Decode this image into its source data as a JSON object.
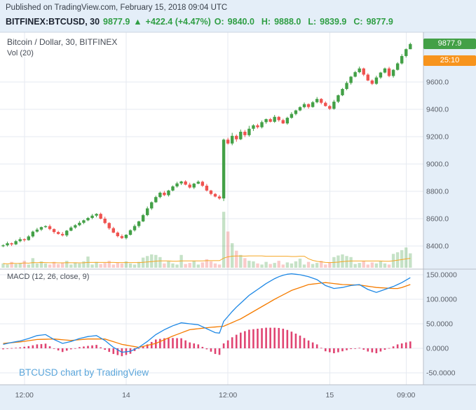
{
  "header": {
    "published": "Published on TradingView.com, February 15, 2018 09:04 UTC",
    "symbol": "BITFINEX:BTCUSD, 30",
    "last_price": "9877.9",
    "arrow": "▲",
    "change": "+422.4 (+4.47%)",
    "ohlc": [
      {
        "label": "O:",
        "value": "9840.0"
      },
      {
        "label": "H:",
        "value": "9888.0"
      },
      {
        "label": "L:",
        "value": "9839.9"
      },
      {
        "label": "C:",
        "value": "9877.9"
      }
    ]
  },
  "legends": {
    "main": "Bitcoin / Dollar, 30, BITFINEX",
    "volume": "Vol (20)",
    "macd": "MACD (12, 26, close, 9)"
  },
  "watermark": "BTCUSD chart by TradingView",
  "axis": {
    "price_badge": "9877.9",
    "countdown_badge": "25:10"
  },
  "colors": {
    "background": "#e4eef8",
    "plot": "#ffffff",
    "grid": "#e6eaf0",
    "border": "#b7bdc7",
    "header_border": "#ccd6e2",
    "up": "#43a047",
    "down": "#ef5350",
    "text_green": "#2f9e44",
    "macd_blue": "#1e88e5",
    "macd_orange": "#f57c00",
    "histogram": "#e04472",
    "vol_ma": "#f5a623",
    "watermark": "#5ba6db",
    "countdown_bg": "#f7941d",
    "axis_text": "#5a5f68",
    "day_text": "#333a45"
  },
  "chart_data": {
    "type": "candlestick",
    "title": "Bitcoin / Dollar, 30, BITFINEX",
    "symbol": "BITFINEX:BTCUSD",
    "interval_minutes": 30,
    "panels": [
      "price+volume",
      "macd"
    ],
    "last_bar": {
      "open": 9840.0,
      "high": 9888.0,
      "low": 9839.9,
      "close": 9877.9,
      "change": "+422.4",
      "change_pct": "+4.47%"
    },
    "price_ticks": [
      {
        "v": 9600,
        "label": "9600.0"
      },
      {
        "v": 9400,
        "label": "9400.0"
      },
      {
        "v": 9200,
        "label": "9200.0"
      },
      {
        "v": 9000,
        "label": "9000.0"
      },
      {
        "v": 8800,
        "label": "8800.0"
      },
      {
        "v": 8600,
        "label": "8600.0"
      },
      {
        "v": 8400,
        "label": "8400.0"
      }
    ],
    "macd_ticks": [
      {
        "v": 150,
        "label": "150.0000"
      },
      {
        "v": 100,
        "label": "100.0000"
      },
      {
        "v": 50,
        "label": "50.0000"
      },
      {
        "v": 0,
        "label": "0.0000"
      },
      {
        "v": -50,
        "label": "-50.0000"
      }
    ],
    "time_ticks": [
      {
        "i": 5,
        "label": "12:00",
        "day": false
      },
      {
        "i": 29,
        "label": "14",
        "day": true
      },
      {
        "i": 53,
        "label": "12:00",
        "day": false
      },
      {
        "i": 77,
        "label": "15",
        "day": true
      },
      {
        "i": 95,
        "label": "09:00",
        "day": false
      }
    ],
    "candles": [
      [
        8398,
        8412,
        8392,
        8405,
        8
      ],
      [
        8405,
        8432,
        8396,
        8420,
        6
      ],
      [
        8420,
        8425,
        8400,
        8412,
        11
      ],
      [
        8412,
        8444,
        8407,
        8435,
        7
      ],
      [
        8435,
        8464,
        8427,
        8450,
        9
      ],
      [
        8450,
        8456,
        8432,
        8443,
        13
      ],
      [
        8443,
        8480,
        8439,
        8470,
        6
      ],
      [
        8470,
        8513,
        8461,
        8505,
        18
      ],
      [
        8505,
        8533,
        8498,
        8520,
        8
      ],
      [
        8520,
        8543,
        8510,
        8538,
        12
      ],
      [
        8538,
        8552,
        8532,
        8545,
        8
      ],
      [
        8545,
        8557,
        8515,
        8524,
        6
      ],
      [
        8524,
        8529,
        8490,
        8502,
        11
      ],
      [
        8502,
        8511,
        8483,
        8488,
        7
      ],
      [
        8488,
        8502,
        8470,
        8478,
        9
      ],
      [
        8478,
        8518,
        8467,
        8512,
        13
      ],
      [
        8512,
        8545,
        8508,
        8535,
        6
      ],
      [
        8535,
        8560,
        8526,
        8552,
        10
      ],
      [
        8552,
        8583,
        8545,
        8570,
        8
      ],
      [
        8570,
        8593,
        8560,
        8588,
        12
      ],
      [
        8588,
        8612,
        8582,
        8605,
        21
      ],
      [
        8605,
        8634,
        8596,
        8622,
        6
      ],
      [
        8622,
        8640,
        8610,
        8635,
        11
      ],
      [
        8635,
        8644,
        8595,
        8600,
        7
      ],
      [
        8600,
        8614,
        8560,
        8568,
        9
      ],
      [
        8568,
        8574,
        8519,
        8530,
        13
      ],
      [
        8530,
        8540,
        8494,
        8498,
        6
      ],
      [
        8498,
        8506,
        8463,
        8472,
        10
      ],
      [
        8472,
        8485,
        8451,
        8458,
        8
      ],
      [
        8458,
        8487,
        8448,
        8482,
        12
      ],
      [
        8482,
        8522,
        8476,
        8515,
        8
      ],
      [
        8515,
        8558,
        8506,
        8546,
        6
      ],
      [
        8546,
        8585,
        8534,
        8580,
        11
      ],
      [
        8580,
        8635,
        8575,
        8626,
        19
      ],
      [
        8626,
        8689,
        8618,
        8675,
        22
      ],
      [
        8675,
        8726,
        8664,
        8720,
        25
      ],
      [
        8720,
        8768,
        8716,
        8758,
        24
      ],
      [
        8758,
        8798,
        8749,
        8790,
        20
      ],
      [
        8790,
        8803,
        8765,
        8772,
        8
      ],
      [
        8772,
        8811,
        8762,
        8806,
        12
      ],
      [
        8806,
        8843,
        8800,
        8836,
        8
      ],
      [
        8836,
        8870,
        8827,
        8858,
        6
      ],
      [
        8858,
        8877,
        8846,
        8872,
        24
      ],
      [
        8872,
        8881,
        8844,
        8849,
        7
      ],
      [
        8849,
        8863,
        8820,
        8828,
        9
      ],
      [
        8828,
        8862,
        8817,
        8856,
        13
      ],
      [
        8856,
        8880,
        8852,
        8870,
        6
      ],
      [
        8870,
        8878,
        8832,
        8841,
        10
      ],
      [
        8841,
        8854,
        8799,
        8806,
        16
      ],
      [
        8806,
        8811,
        8771,
        8781,
        12
      ],
      [
        8781,
        8788,
        8756,
        8762,
        8
      ],
      [
        8762,
        8774,
        8739,
        8748,
        6
      ],
      [
        8748,
        9186,
        8729,
        9178,
        105
      ],
      [
        9178,
        9192,
        9142,
        9150,
        68
      ],
      [
        9150,
        9228,
        9137,
        9206,
        46
      ],
      [
        9206,
        9216,
        9163,
        9181,
        32
      ],
      [
        9181,
        9252,
        9175,
        9236,
        24
      ],
      [
        9236,
        9249,
        9197,
        9211,
        18
      ],
      [
        9211,
        9279,
        9200,
        9258,
        13
      ],
      [
        9258,
        9291,
        9242,
        9283,
        12
      ],
      [
        9283,
        9294,
        9259,
        9269,
        8
      ],
      [
        9269,
        9318,
        9260,
        9306,
        6
      ],
      [
        9306,
        9333,
        9294,
        9328,
        11
      ],
      [
        9328,
        9337,
        9304,
        9309,
        7
      ],
      [
        9309,
        9359,
        9301,
        9345,
        9
      ],
      [
        9345,
        9351,
        9310,
        9321,
        13
      ],
      [
        9321,
        9331,
        9293,
        9297,
        6
      ],
      [
        9297,
        9346,
        9288,
        9338,
        10
      ],
      [
        9338,
        9379,
        9331,
        9366,
        8
      ],
      [
        9366,
        9397,
        9356,
        9392,
        12
      ],
      [
        9392,
        9423,
        9386,
        9416,
        17
      ],
      [
        9416,
        9450,
        9407,
        9438,
        6
      ],
      [
        9438,
        9443,
        9405,
        9417,
        11
      ],
      [
        9417,
        9461,
        9412,
        9452,
        7
      ],
      [
        9452,
        9490,
        9444,
        9476,
        9
      ],
      [
        9476,
        9482,
        9437,
        9448,
        13
      ],
      [
        9448,
        9458,
        9420,
        9424,
        6
      ],
      [
        9424,
        9432,
        9395,
        9404,
        10
      ],
      [
        9404,
        9469,
        9397,
        9456,
        20
      ],
      [
        9456,
        9508,
        9446,
        9503,
        23
      ],
      [
        9503,
        9556,
        9497,
        9549,
        25
      ],
      [
        9549,
        9605,
        9540,
        9593,
        22
      ],
      [
        9593,
        9644,
        9581,
        9639,
        20
      ],
      [
        9639,
        9681,
        9634,
        9672,
        7
      ],
      [
        9672,
        9713,
        9664,
        9699,
        9
      ],
      [
        9699,
        9705,
        9643,
        9654,
        13
      ],
      [
        9654,
        9664,
        9607,
        9611,
        6
      ],
      [
        9611,
        9619,
        9578,
        9587,
        10
      ],
      [
        9587,
        9646,
        9580,
        9633,
        8
      ],
      [
        9633,
        9674,
        9623,
        9669,
        12
      ],
      [
        9669,
        9706,
        9663,
        9699,
        8
      ],
      [
        9699,
        9711,
        9635,
        9644,
        6
      ],
      [
        9644,
        9694,
        9632,
        9689,
        26
      ],
      [
        9689,
        9745,
        9684,
        9736,
        29
      ],
      [
        9736,
        9804,
        9728,
        9790,
        33
      ],
      [
        9790,
        9846,
        9779,
        9840,
        38
      ],
      [
        9840,
        9888,
        9839.9,
        9877.9,
        27
      ]
    ],
    "macd_line": [
      8,
      10,
      12,
      13.5,
      15,
      17.5,
      20,
      23,
      26,
      27,
      28,
      23,
      18,
      14,
      10,
      12,
      14,
      17,
      20,
      22,
      24,
      25,
      26,
      21,
      16,
      9,
      2,
      -3,
      -8,
      -7,
      -6,
      -2,
      2,
      8,
      14,
      21,
      28,
      33,
      38,
      42,
      46,
      49,
      52,
      51,
      50,
      49,
      48,
      44,
      40,
      36,
      32,
      31,
      55,
      65,
      75,
      84,
      92,
      100,
      108,
      114,
      120,
      126,
      132,
      137,
      142,
      146,
      149,
      151,
      152,
      151,
      150,
      148,
      146,
      143,
      140,
      134,
      128,
      125,
      122,
      123,
      124,
      126,
      128,
      129,
      130,
      125,
      120,
      117,
      114,
      117,
      120,
      123,
      126,
      130,
      134,
      139,
      144
    ],
    "signal_line": [
      10,
      10.8,
      11.5,
      12.3,
      13,
      14.3,
      15.5,
      16.8,
      18,
      18.3,
      18.5,
      18.8,
      19,
      18.3,
      17.5,
      16.8,
      16,
      16.8,
      17.5,
      18.3,
      19,
      19,
      19,
      19,
      19,
      16.3,
      13.5,
      10.8,
      8,
      6.5,
      5,
      3.5,
      2,
      4,
      6,
      8,
      10,
      13.8,
      17.5,
      21.3,
      25,
      28.3,
      31.5,
      34.8,
      38,
      39,
      40,
      41,
      42,
      42.8,
      43.5,
      44.3,
      45,
      48.8,
      52.5,
      56.3,
      60,
      65,
      70,
      75,
      80,
      85,
      90,
      95,
      100,
      104.5,
      109,
      113.5,
      118,
      121,
      124,
      127,
      130,
      131,
      132,
      133,
      134,
      133,
      132,
      131,
      130,
      129.8,
      129.5,
      129.3,
      129,
      127.8,
      126.5,
      125.3,
      124,
      123.5,
      123,
      122.5,
      122,
      122,
      124,
      127,
      130
    ]
  }
}
